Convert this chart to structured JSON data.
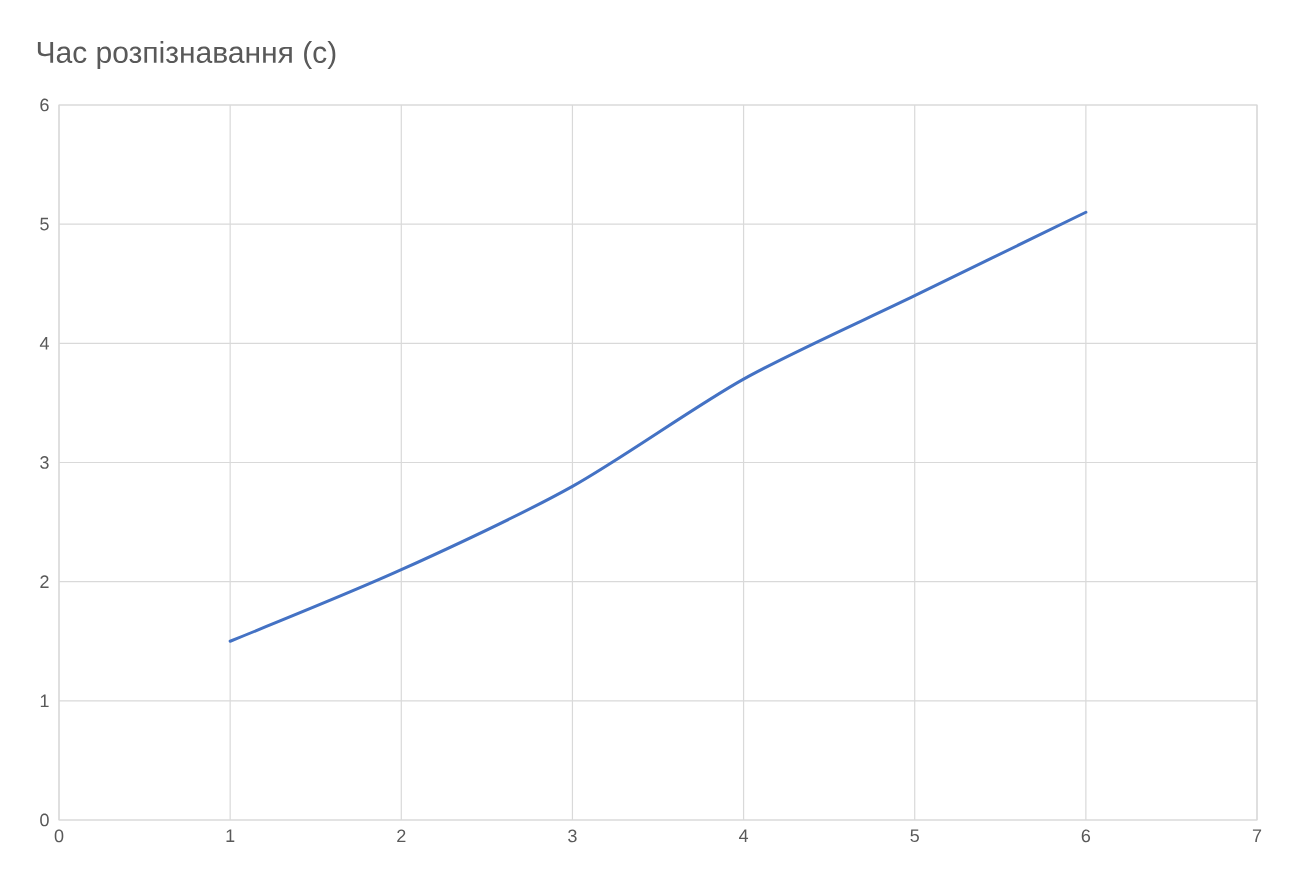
{
  "chart_data": {
    "type": "line",
    "title": "Час розпізнавання (с)",
    "x": [
      1,
      2,
      3,
      4,
      5,
      6
    ],
    "series": [
      {
        "color": "#4472c4",
        "values": [
          1.5,
          2.1,
          2.8,
          3.7,
          4.4,
          5.1
        ]
      }
    ],
    "xlim": [
      0,
      7
    ],
    "xticks": [
      0,
      1,
      2,
      3,
      4,
      5,
      6,
      7
    ],
    "ylim": [
      0,
      6
    ],
    "yticks": [
      0,
      1,
      2,
      3,
      4,
      5,
      6
    ],
    "grid": true,
    "marker": "none",
    "line_style": "solid"
  }
}
